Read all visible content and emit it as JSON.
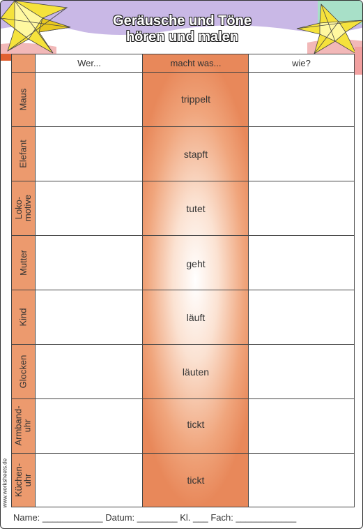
{
  "title": {
    "line1": "Geräusche und Töne",
    "line2": "hören und malen"
  },
  "columns": {
    "wer": "Wer...",
    "macht": "macht was...",
    "wie": "wie?"
  },
  "rows": [
    {
      "label": "Maus",
      "verb": "trippelt"
    },
    {
      "label": "Elefant",
      "verb": "stapft"
    },
    {
      "label": "Loko-\nmotive",
      "verb": "tutet"
    },
    {
      "label": "Mutter",
      "verb": "geht"
    },
    {
      "label": "Kind",
      "verb": "läuft"
    },
    {
      "label": "Glocken",
      "verb": "läuten"
    },
    {
      "label": "Armband-\nuhr",
      "verb": "tickt"
    },
    {
      "label": "Küchen-\nuhr",
      "verb": "tickt"
    }
  ],
  "credit": "www.worksheets.de",
  "footer": "Name: ____________ Datum: ________ Kl. ___ Fach: ____________",
  "colors": {
    "label_column": "#ec9a6e",
    "verb_column_edge": "#e8885a",
    "header_sky": "#c9b8e6",
    "star_yellow": "#f5e23c"
  }
}
